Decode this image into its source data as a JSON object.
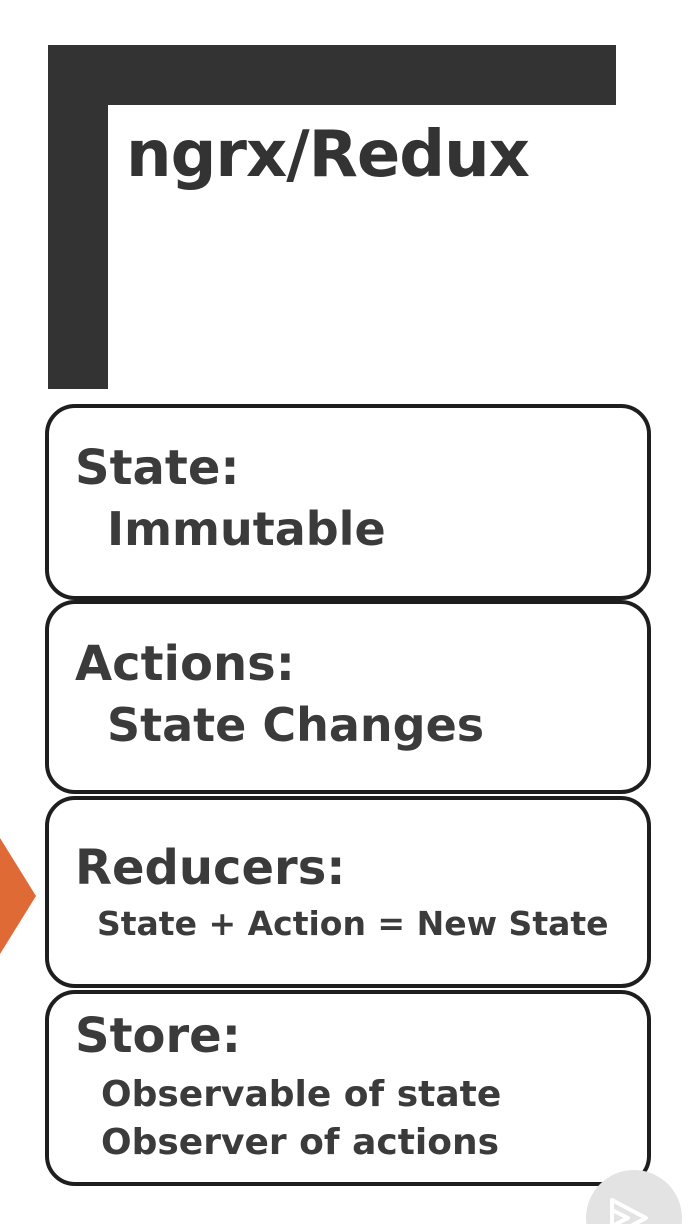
{
  "slide": {
    "title": "ngrx/Redux"
  },
  "cards": {
    "state": {
      "heading": "State:",
      "line1": "Immutable"
    },
    "actions": {
      "heading": "Actions:",
      "line1": "State Changes"
    },
    "reducers": {
      "heading": "Reducers:",
      "line1": "State + Action = New State"
    },
    "store": {
      "heading": "Store:",
      "line1": "Observable of state",
      "line2": "Observer of actions"
    }
  },
  "colors": {
    "bracket": "#333333",
    "text": "#3b3b3b",
    "card_border": "#1e1e1e",
    "pointer_arrow": "#e06a35",
    "badge": "#e3e3e3"
  },
  "icons": {
    "pointer": "arrow-right-icon",
    "badge": "play-logo-icon"
  }
}
